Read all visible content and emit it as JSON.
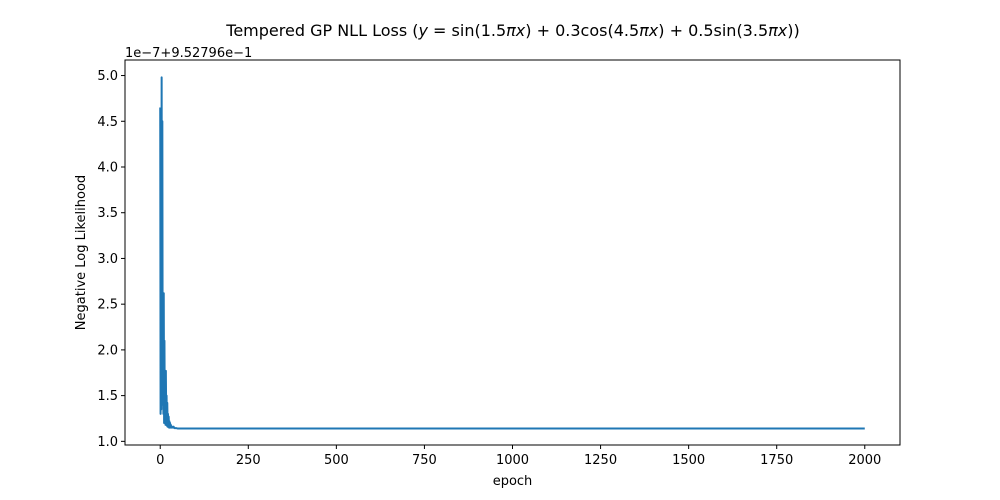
{
  "chart_data": {
    "type": "line",
    "title": "Tempered GP NLL Loss ($y = \\sin(1.5\\pi x) + 0.3\\cos(4.5\\pi x) + 0.5\\sin(3.5\\pi x)$)",
    "title_display": {
      "prefix": "Tempered GP NLL Loss (",
      "y": "y",
      "eq1": " = sin(1.5",
      "pi": "π",
      "x": "x",
      "mid1": ") + 0.3cos(4.5",
      "mid2": ") + 0.5sin(3.5",
      "end": "))"
    },
    "xlabel": "epoch",
    "ylabel": "Negative Log Likelihood",
    "y_offset_text": "1e−7+9.52796e−1",
    "xlim": [
      -100,
      2100
    ],
    "ylim": [
      0.96,
      5.17
    ],
    "xticks": [
      0,
      250,
      500,
      750,
      1000,
      1250,
      1500,
      1750,
      2000
    ],
    "xtick_labels": [
      "0",
      "250",
      "500",
      "750",
      "1000",
      "1250",
      "1500",
      "1750",
      "2000"
    ],
    "yticks": [
      1.0,
      1.5,
      2.0,
      2.5,
      3.0,
      3.5,
      4.0,
      4.5,
      5.0
    ],
    "ytick_labels": [
      "1.0",
      "1.5",
      "2.0",
      "2.5",
      "3.0",
      "3.5",
      "4.0",
      "4.5",
      "5.0"
    ],
    "grid": false,
    "series": [
      {
        "color": "#1f77b4",
        "x": [
          0,
          1,
          2,
          3,
          4,
          5,
          6,
          7,
          8,
          9,
          10,
          11,
          12,
          13,
          14,
          15,
          16,
          17,
          18,
          19,
          20,
          21,
          22,
          23,
          24,
          25,
          26,
          27,
          28,
          29,
          30,
          32,
          34,
          36,
          38,
          40,
          45,
          50,
          60,
          80,
          100,
          150,
          200,
          500,
          1000,
          1500,
          2000
        ],
        "y": [
          4.65,
          1.3,
          4.2,
          1.35,
          4.98,
          1.45,
          4.5,
          1.4,
          2.3,
          1.3,
          2.62,
          1.2,
          2.1,
          1.25,
          1.6,
          1.18,
          1.77,
          1.2,
          1.5,
          1.17,
          1.42,
          1.16,
          1.3,
          1.16,
          1.27,
          1.15,
          1.22,
          1.15,
          1.2,
          1.15,
          1.18,
          1.15,
          1.16,
          1.15,
          1.16,
          1.145,
          1.145,
          1.14,
          1.14,
          1.14,
          1.14,
          1.14,
          1.14,
          1.14,
          1.14,
          1.14,
          1.14
        ]
      }
    ]
  }
}
